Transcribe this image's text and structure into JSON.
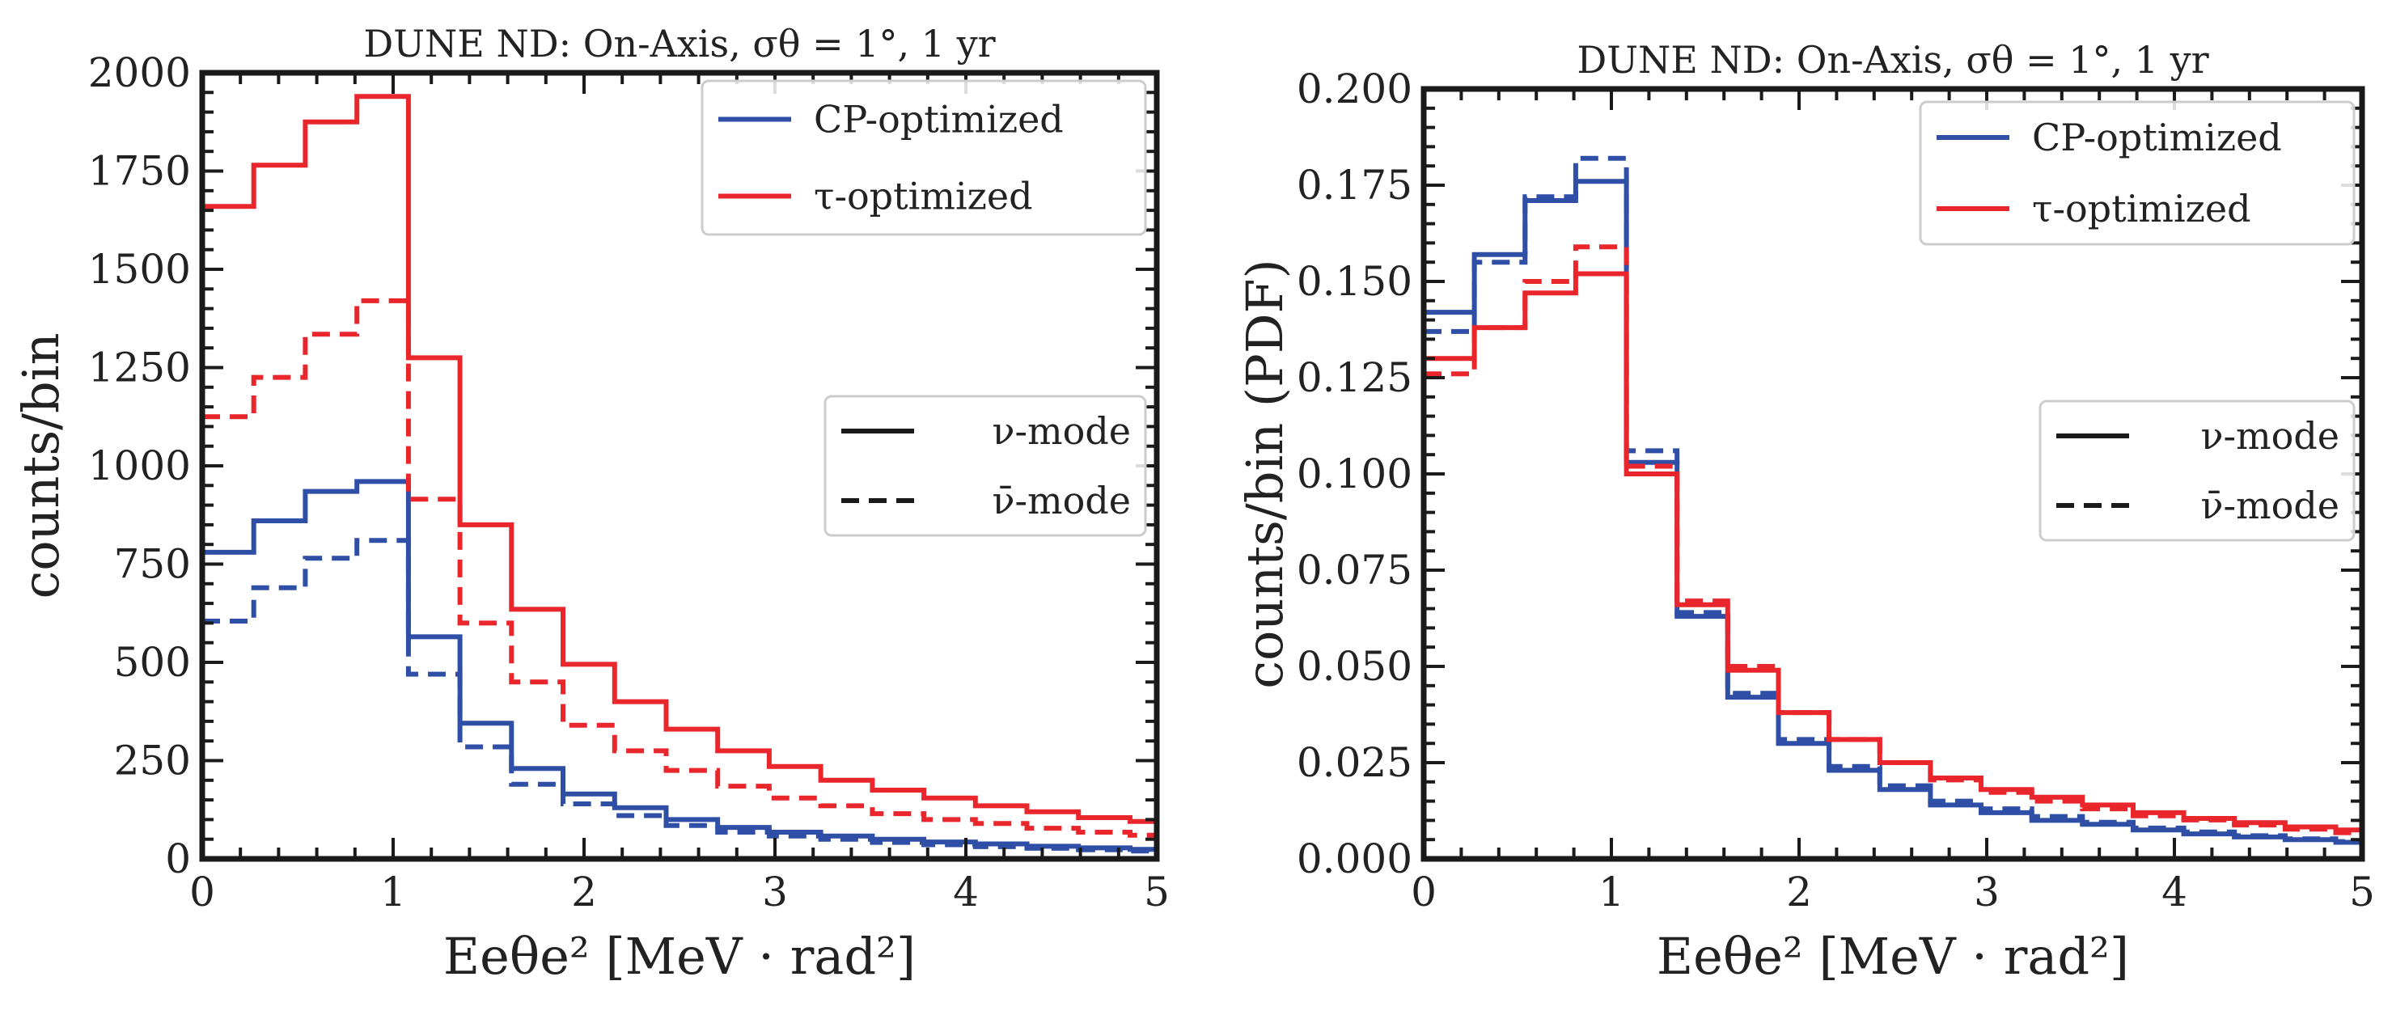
{
  "figure": {
    "colors": {
      "cp": "#2f4ea6",
      "tau": "#e8262b",
      "axes": "#1a1a1a",
      "legend_border": "#cccccc"
    }
  },
  "chart_data": [
    {
      "type": "line",
      "title": "DUNE ND: On-Axis, σθ = 1°, 1 yr",
      "xlabel": "Eeθe² [MeV · rad²]",
      "ylabel": "counts/bin",
      "xlim": [
        0,
        5
      ],
      "ylim": [
        0,
        2000
      ],
      "xticks": [
        0,
        1,
        2,
        3,
        4,
        5
      ],
      "xtick_labels": [
        "0",
        "1",
        "2",
        "3",
        "4",
        "5"
      ],
      "yticks": [
        0,
        250,
        500,
        750,
        1000,
        1250,
        1500,
        1750,
        2000
      ],
      "ytick_labels": [
        "0",
        "250",
        "500",
        "750",
        "1000",
        "1250",
        "1500",
        "1750",
        "2000"
      ],
      "bin_edges": [
        0,
        0.27,
        0.54,
        0.81,
        1.08,
        1.35,
        1.62,
        1.89,
        2.16,
        2.43,
        2.7,
        2.97,
        3.24,
        3.51,
        3.78,
        4.05,
        4.32,
        4.59,
        4.86,
        5.0
      ],
      "series": [
        {
          "name": "CP-optimized ν-mode",
          "color": "#2f4ea6",
          "dash": false,
          "values": [
            780,
            860,
            935,
            960,
            565,
            345,
            230,
            165,
            130,
            100,
            80,
            68,
            58,
            50,
            43,
            38,
            32,
            28,
            24
          ]
        },
        {
          "name": "CP-optimized ν̄-mode",
          "color": "#2f4ea6",
          "dash": true,
          "values": [
            605,
            690,
            765,
            810,
            470,
            285,
            190,
            140,
            110,
            85,
            68,
            58,
            50,
            42,
            36,
            31,
            27,
            23,
            20
          ]
        },
        {
          "name": "τ-optimized ν-mode",
          "color": "#e8262b",
          "dash": false,
          "values": [
            1660,
            1765,
            1875,
            1940,
            1275,
            850,
            635,
            495,
            400,
            330,
            275,
            235,
            200,
            175,
            155,
            135,
            120,
            105,
            95
          ]
        },
        {
          "name": "τ-optimized ν̄-mode",
          "color": "#e8262b",
          "dash": true,
          "values": [
            1125,
            1225,
            1335,
            1420,
            915,
            600,
            450,
            340,
            275,
            225,
            185,
            155,
            135,
            115,
            100,
            90,
            78,
            68,
            60
          ]
        }
      ],
      "legends": [
        {
          "position": "top-right",
          "entries": [
            {
              "label": "CP-optimized",
              "color": "#2f4ea6",
              "dash": false
            },
            {
              "label": "τ-optimized",
              "color": "#e8262b",
              "dash": false
            }
          ]
        },
        {
          "position": "center-right",
          "entries": [
            {
              "label": "ν-mode",
              "color": "#1a1a1a",
              "dash": false
            },
            {
              "label": "ν̄-mode",
              "color": "#1a1a1a",
              "dash": true
            }
          ]
        }
      ]
    },
    {
      "type": "line",
      "title": "DUNE ND: On-Axis, σθ = 1°, 1 yr",
      "xlabel": "Eeθe² [MeV · rad²]",
      "ylabel": "counts/bin (PDF)",
      "xlim": [
        0,
        5
      ],
      "ylim": [
        0,
        0.2
      ],
      "xticks": [
        0,
        1,
        2,
        3,
        4,
        5
      ],
      "xtick_labels": [
        "0",
        "1",
        "2",
        "3",
        "4",
        "5"
      ],
      "yticks": [
        0,
        0.025,
        0.05,
        0.075,
        0.1,
        0.125,
        0.15,
        0.175,
        0.2
      ],
      "ytick_labels": [
        "0.000",
        "0.025",
        "0.050",
        "0.075",
        "0.100",
        "0.125",
        "0.150",
        "0.175",
        "0.200"
      ],
      "bin_edges": [
        0,
        0.27,
        0.54,
        0.81,
        1.08,
        1.35,
        1.62,
        1.89,
        2.16,
        2.43,
        2.7,
        2.97,
        3.24,
        3.51,
        3.78,
        4.05,
        4.32,
        4.59,
        4.86,
        5.0
      ],
      "series": [
        {
          "name": "CP-optimized ν-mode",
          "color": "#2f4ea6",
          "dash": false,
          "values": [
            0.142,
            0.157,
            0.171,
            0.176,
            0.103,
            0.063,
            0.042,
            0.03,
            0.023,
            0.018,
            0.014,
            0.012,
            0.01,
            0.009,
            0.0075,
            0.0065,
            0.0057,
            0.005,
            0.0043
          ]
        },
        {
          "name": "CP-optimized ν̄-mode",
          "color": "#2f4ea6",
          "dash": true,
          "values": [
            0.137,
            0.155,
            0.172,
            0.182,
            0.106,
            0.064,
            0.043,
            0.031,
            0.024,
            0.019,
            0.015,
            0.013,
            0.011,
            0.0095,
            0.008,
            0.007,
            0.006,
            0.0052,
            0.0045
          ]
        },
        {
          "name": "τ-optimized ν-mode",
          "color": "#e8262b",
          "dash": false,
          "values": [
            0.13,
            0.138,
            0.147,
            0.152,
            0.1,
            0.066,
            0.049,
            0.038,
            0.031,
            0.025,
            0.021,
            0.018,
            0.016,
            0.014,
            0.012,
            0.0105,
            0.0094,
            0.0083,
            0.0075
          ]
        },
        {
          "name": "τ-optimized ν̄-mode",
          "color": "#e8262b",
          "dash": true,
          "values": [
            0.126,
            0.138,
            0.15,
            0.159,
            0.102,
            0.067,
            0.05,
            0.038,
            0.031,
            0.025,
            0.0205,
            0.0173,
            0.015,
            0.013,
            0.0112,
            0.0101,
            0.0088,
            0.0077,
            0.0068
          ]
        }
      ],
      "legends": [
        {
          "position": "top-right",
          "entries": [
            {
              "label": "CP-optimized",
              "color": "#2f4ea6",
              "dash": false
            },
            {
              "label": "τ-optimized",
              "color": "#e8262b",
              "dash": false
            }
          ]
        },
        {
          "position": "center-right",
          "entries": [
            {
              "label": "ν-mode",
              "color": "#1a1a1a",
              "dash": false
            },
            {
              "label": "ν̄-mode",
              "color": "#1a1a1a",
              "dash": true
            }
          ]
        }
      ]
    }
  ]
}
